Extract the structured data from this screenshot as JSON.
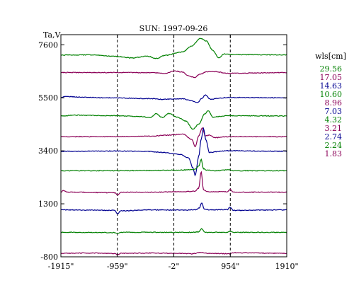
{
  "chart_data": {
    "type": "line",
    "title": "SUN: 1997-09-26",
    "ylabel": "Ta,V",
    "xlabel": "",
    "xlim": [
      -1915,
      1910
    ],
    "ylim": [
      -800,
      8000
    ],
    "x_ticks": [
      {
        "value": -1915,
        "label": "-1915\""
      },
      {
        "value": -959,
        "label": "-959\""
      },
      {
        "value": -2,
        "label": "-2\""
      },
      {
        "value": 954,
        "label": "954\""
      },
      {
        "value": 1910,
        "label": "1910\""
      }
    ],
    "y_ticks": [
      {
        "value": 7600,
        "label": "7600"
      },
      {
        "value": 5500,
        "label": "5500"
      },
      {
        "value": 3400,
        "label": "3400"
      },
      {
        "value": 1300,
        "label": "1300"
      },
      {
        "value": -800,
        "label": "-800"
      }
    ],
    "vlines": [
      -959,
      -2,
      954
    ],
    "grid": false,
    "legend": {
      "title": "wls[cm]",
      "position": "right"
    },
    "series": [
      {
        "name": "29.56",
        "color": "#008000",
        "baseline": 7200,
        "features": [
          [
            -1915,
            -10
          ],
          [
            -1400,
            0
          ],
          [
            -1000,
            -60
          ],
          [
            -700,
            -120
          ],
          [
            -450,
            -50
          ],
          [
            -300,
            -140
          ],
          [
            -150,
            -20
          ],
          [
            150,
            120
          ],
          [
            300,
            350
          ],
          [
            450,
            650
          ],
          [
            550,
            550
          ],
          [
            650,
            200
          ],
          [
            760,
            -120
          ],
          [
            850,
            40
          ],
          [
            1000,
            10
          ],
          [
            1910,
            0
          ]
        ]
      },
      {
        "name": "17.05",
        "color": "#8b0057",
        "baseline": 6500,
        "features": [
          [
            -1915,
            0
          ],
          [
            -700,
            0
          ],
          [
            -350,
            -10
          ],
          [
            -150,
            -30
          ],
          [
            0,
            60
          ],
          [
            150,
            20
          ],
          [
            250,
            -140
          ],
          [
            350,
            -190
          ],
          [
            450,
            -60
          ],
          [
            550,
            30
          ],
          [
            700,
            40
          ],
          [
            900,
            -30
          ],
          [
            1910,
            0
          ]
        ]
      },
      {
        "name": "14.63",
        "color": "#000090",
        "baseline": 5500,
        "features": [
          [
            -1915,
            10
          ],
          [
            -1850,
            50
          ],
          [
            -1500,
            20
          ],
          [
            -1200,
            0
          ],
          [
            -400,
            -30
          ],
          [
            -200,
            -60
          ],
          [
            150,
            -40
          ],
          [
            300,
            -120
          ],
          [
            400,
            -200
          ],
          [
            470,
            -20
          ],
          [
            530,
            110
          ],
          [
            620,
            -60
          ],
          [
            750,
            -20
          ],
          [
            900,
            10
          ],
          [
            1910,
            0
          ]
        ]
      },
      {
        "name": "10.60",
        "color": "#008000",
        "baseline": 4780,
        "features": [
          [
            -1915,
            0
          ],
          [
            -1700,
            30
          ],
          [
            -1000,
            10
          ],
          [
            -600,
            -20
          ],
          [
            -400,
            -60
          ],
          [
            -300,
            90
          ],
          [
            -200,
            -60
          ],
          [
            -80,
            100
          ],
          [
            50,
            -40
          ],
          [
            200,
            -200
          ],
          [
            320,
            -520
          ],
          [
            420,
            -320
          ],
          [
            520,
            80
          ],
          [
            580,
            210
          ],
          [
            660,
            -50
          ],
          [
            780,
            -20
          ],
          [
            900,
            10
          ],
          [
            1910,
            0
          ]
        ]
      },
      {
        "name": "8.96",
        "color": "#8b0057",
        "baseline": 3960,
        "features": [
          [
            -1915,
            0
          ],
          [
            -960,
            0
          ],
          [
            -400,
            20
          ],
          [
            -100,
            60
          ],
          [
            150,
            100
          ],
          [
            300,
            -100
          ],
          [
            360,
            -400
          ],
          [
            420,
            40
          ],
          [
            480,
            350
          ],
          [
            530,
            30
          ],
          [
            600,
            60
          ],
          [
            700,
            -40
          ],
          [
            900,
            0
          ],
          [
            1910,
            0
          ]
        ]
      },
      {
        "name": "7.03",
        "color": "#000090",
        "baseline": 3380,
        "features": [
          [
            -1915,
            0
          ],
          [
            -1000,
            10
          ],
          [
            -500,
            0
          ],
          [
            -200,
            -40
          ],
          [
            100,
            -120
          ],
          [
            250,
            -260
          ],
          [
            320,
            -650
          ],
          [
            360,
            -950
          ],
          [
            420,
            -200
          ],
          [
            460,
            480
          ],
          [
            500,
            900
          ],
          [
            540,
            450
          ],
          [
            600,
            -50
          ],
          [
            700,
            -20
          ],
          [
            900,
            20
          ],
          [
            1910,
            0
          ]
        ]
      },
      {
        "name": "4.32",
        "color": "#008000",
        "baseline": 2610,
        "features": [
          [
            -1915,
            0
          ],
          [
            -1000,
            0
          ],
          [
            -400,
            10
          ],
          [
            200,
            30
          ],
          [
            350,
            60
          ],
          [
            420,
            180
          ],
          [
            460,
            450
          ],
          [
            500,
            80
          ],
          [
            560,
            20
          ],
          [
            700,
            0
          ],
          [
            950,
            40
          ],
          [
            1000,
            0
          ],
          [
            1910,
            0
          ]
        ]
      },
      {
        "name": "3.21",
        "color": "#8b0057",
        "baseline": 1760,
        "features": [
          [
            -1915,
            0
          ],
          [
            -1880,
            60
          ],
          [
            -1800,
            0
          ],
          [
            -1000,
            -20
          ],
          [
            -959,
            -120
          ],
          [
            -900,
            0
          ],
          [
            -400,
            0
          ],
          [
            200,
            20
          ],
          [
            350,
            40
          ],
          [
            420,
            160
          ],
          [
            460,
            820
          ],
          [
            500,
            100
          ],
          [
            560,
            20
          ],
          [
            900,
            20
          ],
          [
            954,
            120
          ],
          [
            1000,
            0
          ],
          [
            1910,
            0
          ]
        ]
      },
      {
        "name": "2.74",
        "color": "#000090",
        "baseline": 1060,
        "features": [
          [
            -1915,
            0
          ],
          [
            -1000,
            -20
          ],
          [
            -959,
            -160
          ],
          [
            -900,
            -40
          ],
          [
            -400,
            0
          ],
          [
            200,
            -10
          ],
          [
            380,
            10
          ],
          [
            430,
            80
          ],
          [
            470,
            280
          ],
          [
            510,
            30
          ],
          [
            600,
            0
          ],
          [
            900,
            10
          ],
          [
            954,
            110
          ],
          [
            1000,
            -20
          ],
          [
            1910,
            0
          ]
        ]
      },
      {
        "name": "2.24",
        "color": "#008000",
        "baseline": 170,
        "features": [
          [
            -1915,
            0
          ],
          [
            -1000,
            -10
          ],
          [
            -959,
            -40
          ],
          [
            -900,
            0
          ],
          [
            -400,
            0
          ],
          [
            300,
            0
          ],
          [
            420,
            20
          ],
          [
            470,
            140
          ],
          [
            520,
            0
          ],
          [
            900,
            0
          ],
          [
            954,
            40
          ],
          [
            1000,
            0
          ],
          [
            1910,
            0
          ]
        ]
      },
      {
        "name": "1.83",
        "color": "#8b0057",
        "baseline": -660,
        "features": [
          [
            -1915,
            0
          ],
          [
            -1400,
            10
          ],
          [
            -1000,
            -10
          ],
          [
            -959,
            -60
          ],
          [
            -900,
            0
          ],
          [
            -400,
            10
          ],
          [
            100,
            0
          ],
          [
            300,
            -20
          ],
          [
            450,
            30
          ],
          [
            600,
            0
          ],
          [
            954,
            -20
          ],
          [
            1000,
            20
          ],
          [
            1910,
            0
          ]
        ]
      }
    ]
  }
}
